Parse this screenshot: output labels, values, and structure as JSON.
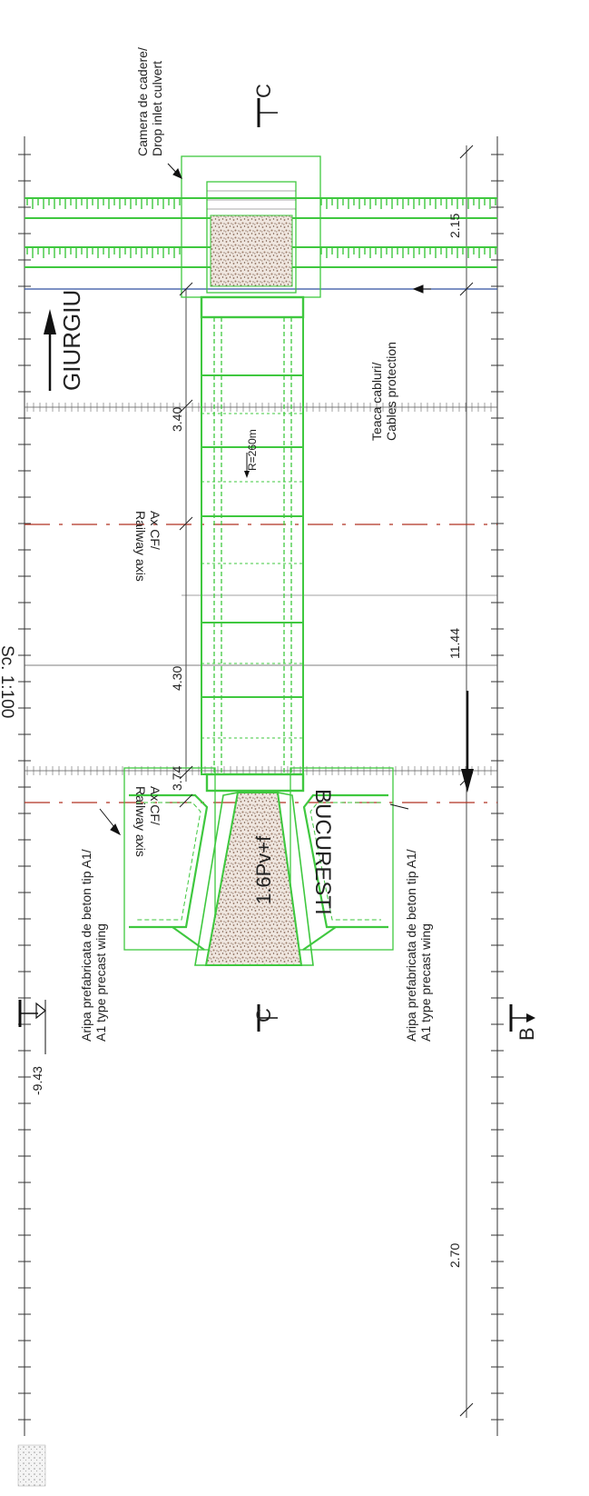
{
  "scale_label": "Sc. 1:100",
  "level_mark": "-9.43",
  "sections": {
    "c_top": "C",
    "c_bottom": "C",
    "b": "B"
  },
  "directions": {
    "giurgiu": "GIURGIU",
    "bucuresti": "BUCURESTI"
  },
  "curve_radius": "R=260m",
  "culvert_code": "1.6Pv+f",
  "railway_axis": {
    "ro": "Ax CF/",
    "en": "Railway axis"
  },
  "drop_inlet": {
    "ro": "Camera de cadere/",
    "en": "Drop inlet culvert"
  },
  "cables": {
    "ro": "Teaca cabluri/",
    "en": "Cables protection"
  },
  "wing_left": {
    "ro": "Aripa prefabricata de beton tip A1/",
    "en": "A1 type precast wing"
  },
  "wing_right": {
    "ro": "Aripa prefabricata de beton tip A1/",
    "en": "A1 type precast wing"
  },
  "dimensions": {
    "d_2_15": "2.15",
    "d_3_40": "3.40",
    "d_4_30": "4.30",
    "d_3_74": "3.74",
    "d_11_44": "11.44",
    "d_2_70": "2.70"
  },
  "colors": {
    "structure": "#3fc83f",
    "railway_axis": "#b03020",
    "hatch": "#8a6a58",
    "blue_line": "#3050a0",
    "ink": "#222222"
  }
}
